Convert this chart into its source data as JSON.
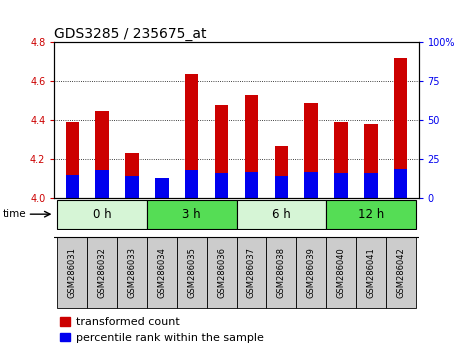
{
  "title": "GDS3285 / 235675_at",
  "samples": [
    "GSM286031",
    "GSM286032",
    "GSM286033",
    "GSM286034",
    "GSM286035",
    "GSM286036",
    "GSM286037",
    "GSM286038",
    "GSM286039",
    "GSM286040",
    "GSM286041",
    "GSM286042"
  ],
  "transformed_count": [
    4.39,
    4.45,
    4.23,
    4.1,
    4.64,
    4.48,
    4.53,
    4.27,
    4.49,
    4.39,
    4.38,
    4.72
  ],
  "percentile_rank": [
    15,
    18,
    14,
    13,
    18,
    16,
    17,
    14,
    17,
    16,
    16,
    19
  ],
  "base": 4.0,
  "ylim_left": [
    4.0,
    4.8
  ],
  "ylim_right": [
    0,
    100
  ],
  "yticks_left": [
    4.0,
    4.2,
    4.4,
    4.6,
    4.8
  ],
  "yticks_right": [
    0,
    25,
    50,
    75,
    100
  ],
  "time_groups": [
    {
      "label": "0 h",
      "start": 0,
      "end": 3,
      "color": "#d6f5d6"
    },
    {
      "label": "3 h",
      "start": 3,
      "end": 6,
      "color": "#55dd55"
    },
    {
      "label": "6 h",
      "start": 6,
      "end": 9,
      "color": "#d6f5d6"
    },
    {
      "label": "12 h",
      "start": 9,
      "end": 12,
      "color": "#55dd55"
    }
  ],
  "bar_color_red": "#cc0000",
  "bar_color_blue": "#0000ee",
  "bar_width": 0.45,
  "title_fontsize": 10,
  "tick_fontsize": 7,
  "legend_fontsize": 8,
  "grid_color": "#000000",
  "plot_bg": "#ffffff",
  "tick_label_color_left": "#cc0000",
  "tick_label_color_right": "#0000ee",
  "sample_box_color": "#cccccc"
}
